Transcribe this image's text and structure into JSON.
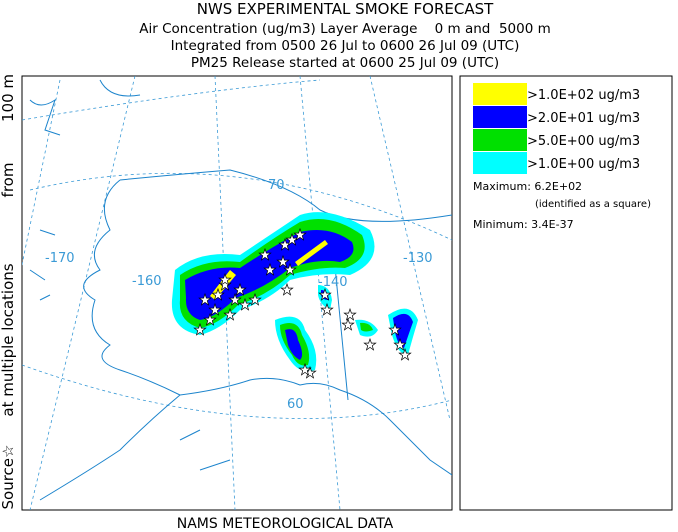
{
  "header": {
    "lines": [
      "NWS EXPERIMENTAL SMOKE FORECAST",
      "Air Concentration (ug/m3) Layer Average    0 m and  5000 m",
      "Integrated from 0500 26 Jul to 0600 26 Jul 09 (UTC)",
      "PM25 Release started at 0600 25 Jul 09 (UTC)"
    ]
  },
  "side_label": [
    "Source☆",
    "at multiple locations",
    "from",
    "100 m"
  ],
  "map": {
    "labels": [
      "-170",
      "-160",
      "-140",
      "-130",
      "70",
      "60"
    ]
  },
  "legend": {
    "items": [
      {
        "label": ">1.0E+02 ug/m3",
        "color": "#ffff00"
      },
      {
        "label": ">2.0E+01 ug/m3",
        "color": "#0000ff"
      },
      {
        "label": ">5.0E+00 ug/m3",
        "color": "#00e000"
      },
      {
        "label": ">1.0E+00 ug/m3",
        "color": "#00ffff"
      }
    ],
    "maximum": "Maximum: 6.2E+02",
    "maximum_note": "(identified as a square)",
    "minimum": "Minimum: 3.4E-37"
  },
  "footer": "NAMS METEOROLOGICAL DATA"
}
